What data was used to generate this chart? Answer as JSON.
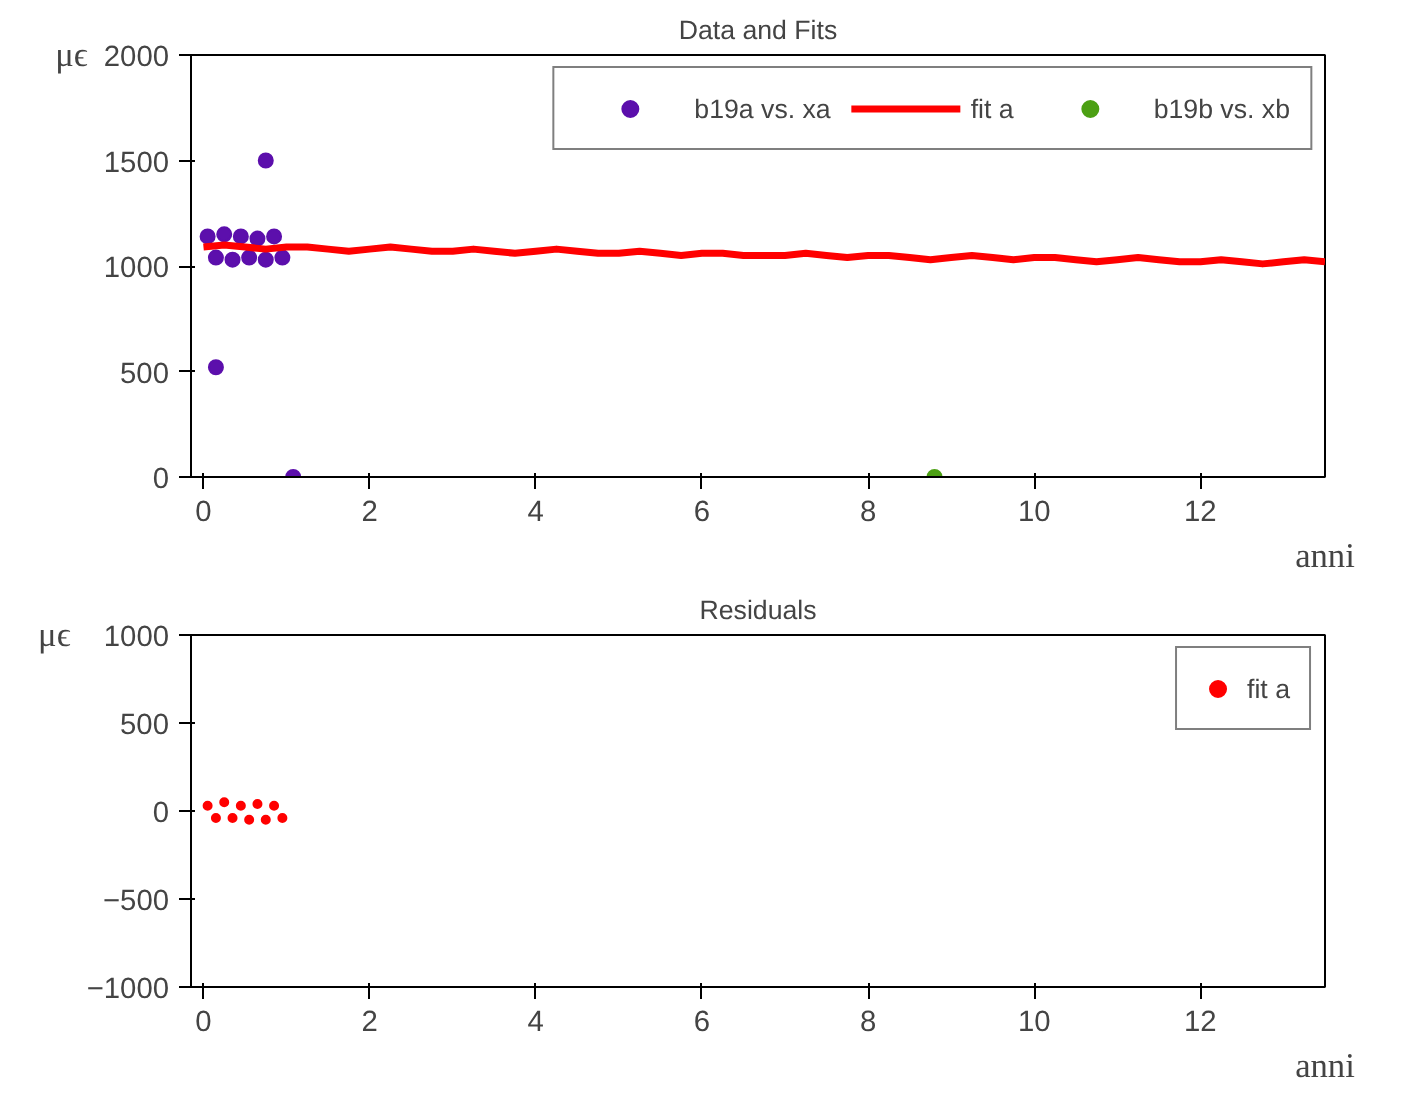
{
  "chart_data": [
    {
      "type": "scatter",
      "title": "Data and Fits",
      "xlabel": "anni",
      "ylabel": "μϵ",
      "xlim": [
        -0.15,
        13.5
      ],
      "ylim": [
        0,
        2000
      ],
      "xticks": [
        0,
        2,
        4,
        6,
        8,
        10,
        12
      ],
      "yticks": [
        0,
        500,
        1000,
        1500,
        2000
      ],
      "grid": false,
      "legend": "top right",
      "series": [
        {
          "name": "b19a vs. xa",
          "color": "#5c0fac",
          "marker": "circle",
          "x": [
            0.05,
            0.15,
            0.25,
            0.35,
            0.45,
            0.55,
            0.65,
            0.75,
            0.85,
            0.95,
            0.15,
            0.75,
            1.08
          ],
          "values": [
            1140,
            1040,
            1150,
            1030,
            1140,
            1040,
            1130,
            1030,
            1140,
            1040,
            520,
            1500,
            0
          ]
        },
        {
          "name": "fit a",
          "color": "#ff0000",
          "type": "line",
          "marker": "none",
          "x": [
            0,
            0.25,
            0.5,
            0.75,
            1,
            1.25,
            1.5,
            1.75,
            2,
            2.25,
            2.5,
            2.75,
            3,
            3.25,
            3.5,
            3.75,
            4,
            4.25,
            4.5,
            4.75,
            5,
            5.25,
            5.5,
            5.75,
            6,
            6.25,
            6.5,
            6.75,
            7,
            7.25,
            7.5,
            7.75,
            8,
            8.25,
            8.5,
            8.75,
            9,
            9.25,
            9.5,
            9.75,
            10,
            10.25,
            10.5,
            10.75,
            11,
            11.25,
            11.5,
            11.75,
            12,
            12.25,
            12.5,
            12.75,
            13,
            13.25,
            13.5
          ],
          "values": [
            1090,
            1100,
            1090,
            1080,
            1090,
            1090,
            1080,
            1070,
            1080,
            1090,
            1080,
            1070,
            1070,
            1080,
            1070,
            1060,
            1070,
            1080,
            1070,
            1060,
            1060,
            1070,
            1060,
            1050,
            1060,
            1060,
            1050,
            1050,
            1050,
            1060,
            1050,
            1040,
            1050,
            1050,
            1040,
            1030,
            1040,
            1050,
            1040,
            1030,
            1040,
            1040,
            1030,
            1020,
            1030,
            1040,
            1030,
            1020,
            1020,
            1030,
            1020,
            1010,
            1020,
            1030,
            1020
          ]
        },
        {
          "name": "b19b vs. xb",
          "color": "#4ca014",
          "marker": "circle",
          "x": [
            8.8
          ],
          "values": [
            0
          ]
        }
      ]
    },
    {
      "type": "scatter",
      "title": "Residuals",
      "xlabel": "anni",
      "ylabel": "μϵ",
      "xlim": [
        -0.15,
        13.5
      ],
      "ylim": [
        -1000,
        1000
      ],
      "xticks": [
        0,
        2,
        4,
        6,
        8,
        10,
        12
      ],
      "yticks": [
        -1000,
        -500,
        0,
        500,
        1000
      ],
      "grid": false,
      "legend": "top right",
      "series": [
        {
          "name": "fit a",
          "color": "#ff0000",
          "marker": "circle",
          "x": [
            0.05,
            0.15,
            0.25,
            0.35,
            0.45,
            0.55,
            0.65,
            0.75,
            0.85,
            0.95
          ],
          "values": [
            30,
            -40,
            50,
            -40,
            30,
            -50,
            40,
            -50,
            30,
            -40
          ]
        }
      ]
    }
  ]
}
